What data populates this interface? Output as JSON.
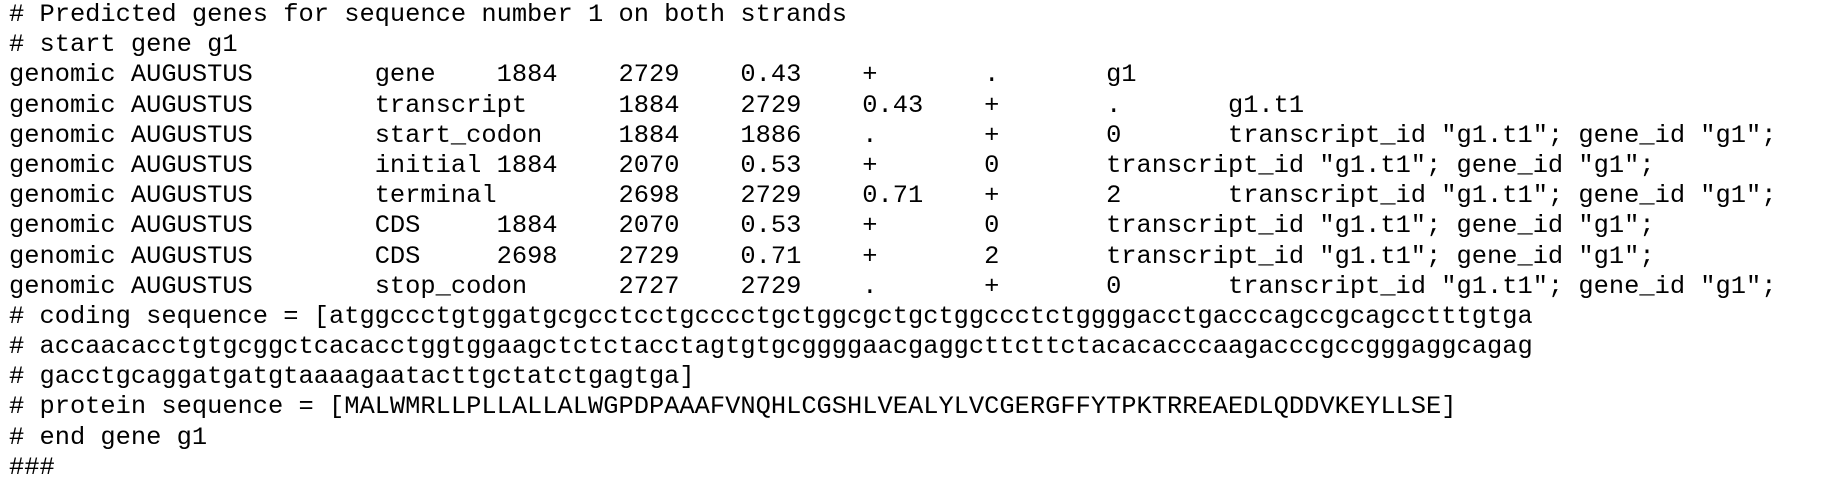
{
  "output": {
    "lines": [
      "# Predicted genes for sequence number 1 on both strands",
      "# start gene g1",
      "genomic AUGUSTUS\tgene\t1884\t2729\t0.43\t+\t.\tg1",
      "genomic AUGUSTUS\ttranscript\t1884\t2729\t0.43\t+\t.\tg1.t1",
      "genomic AUGUSTUS\tstart_codon\t1884\t1886\t.\t+\t0\ttranscript_id \"g1.t1\"; gene_id \"g1\";",
      "genomic AUGUSTUS\tinitial\t1884\t2070\t0.53\t+\t0\ttranscript_id \"g1.t1\"; gene_id \"g1\";",
      "genomic AUGUSTUS\tterminal\t2698\t2729\t0.71\t+\t2\ttranscript_id \"g1.t1\"; gene_id \"g1\";",
      "genomic AUGUSTUS\tCDS\t1884\t2070\t0.53\t+\t0\ttranscript_id \"g1.t1\"; gene_id \"g1\";",
      "genomic AUGUSTUS\tCDS\t2698\t2729\t0.71\t+\t2\ttranscript_id \"g1.t1\"; gene_id \"g1\";",
      "genomic AUGUSTUS\tstop_codon\t2727\t2729\t.\t+\t0\ttranscript_id \"g1.t1\"; gene_id \"g1\";",
      "# coding sequence = [atggccctgtggatgcgcctcctgcccctgctggcgctgctggccctctggggacctgacccagccgcagcctttgtga",
      "# accaacacctgtgcggctcacacctggtggaagctctctacctagtgtgcggggaacgaggcttcttctacacacccaagacccgccgggaggcagag",
      "# gacctgcaggatgatgtaaaagaatacttgctatctgagtga]",
      "# protein sequence = [MALWMRLLPLLALLALWGPDPAAAFVNQHLCGSHLVEALYLVCGERGFFYTPKTRREAEDLQDDVKEYLLSE]",
      "# end gene g1",
      "###"
    ]
  }
}
